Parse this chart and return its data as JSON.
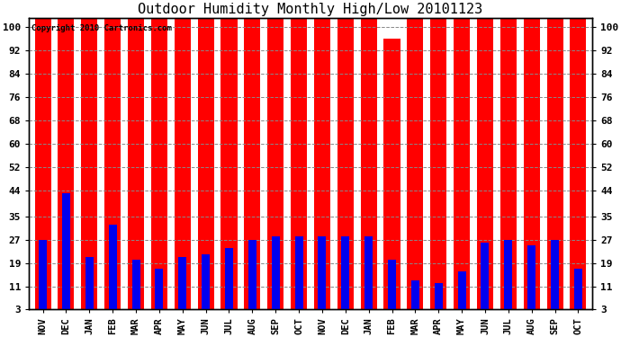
{
  "title": "Outdoor Humidity Monthly High/Low 20101123",
  "copyright": "Copyright 2010 Cartronics.com",
  "categories": [
    "NOV",
    "DEC",
    "JAN",
    "FEB",
    "MAR",
    "APR",
    "MAY",
    "JUN",
    "JUL",
    "AUG",
    "SEP",
    "OCT",
    "NOV",
    "DEC",
    "JAN",
    "FEB",
    "MAR",
    "APR",
    "MAY",
    "JUN",
    "JUL",
    "AUG",
    "SEP",
    "OCT"
  ],
  "highs": [
    100,
    100,
    100,
    100,
    100,
    100,
    100,
    100,
    100,
    100,
    100,
    100,
    100,
    100,
    100,
    93,
    100,
    100,
    100,
    100,
    100,
    100,
    100,
    100
  ],
  "lows": [
    27,
    43,
    21,
    32,
    20,
    17,
    21,
    22,
    24,
    27,
    28,
    28,
    28,
    28,
    28,
    20,
    13,
    12,
    16,
    26,
    27,
    25,
    27,
    17
  ],
  "high_color": "#ff0000",
  "low_color": "#0000ee",
  "bg_color": "#ffffff",
  "grid_color": "#888888",
  "yticks": [
    3,
    11,
    19,
    27,
    35,
    44,
    52,
    60,
    68,
    76,
    84,
    92,
    100
  ],
  "ylim": [
    3,
    103
  ],
  "red_bar_width": 0.7,
  "blue_bar_width": 0.35,
  "figsize": [
    6.9,
    3.75
  ],
  "dpi": 100
}
